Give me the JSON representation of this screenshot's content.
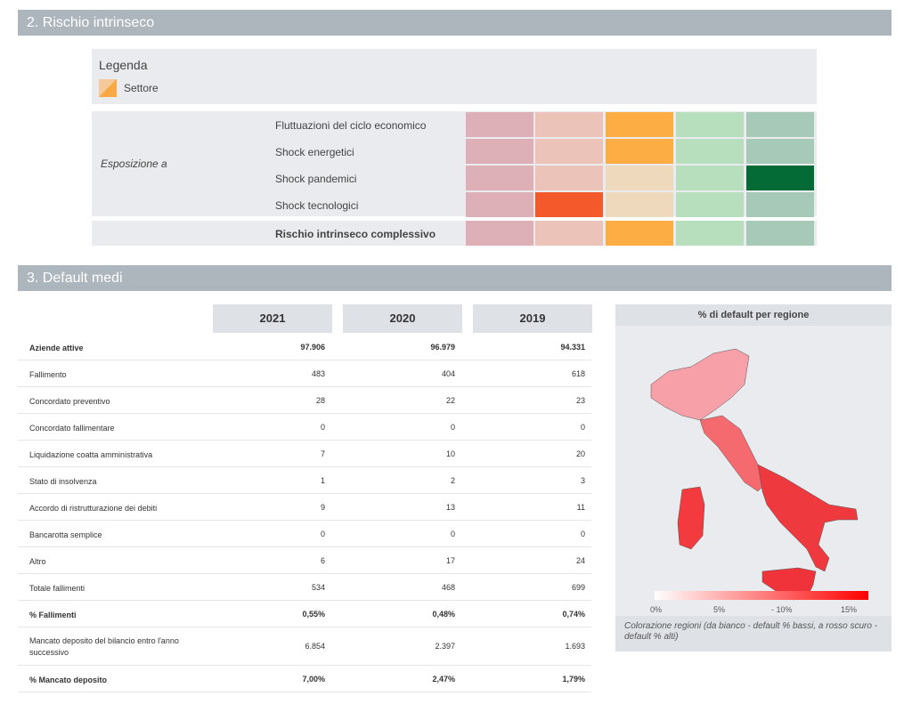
{
  "section2": {
    "title": "2. Rischio intrinseco"
  },
  "legend": {
    "title": "Legenda",
    "item": "Settore"
  },
  "risk": {
    "group_label": "Esposizione a",
    "rows": [
      {
        "label": "Fluttuazioni del ciclo economico",
        "colors": [
          "#ddb0b8",
          "#ecc3b8",
          "#fcae45",
          "#b7dfbd",
          "#a6c9b8"
        ]
      },
      {
        "label": "Shock energetici",
        "colors": [
          "#ddb0b8",
          "#ecc3b8",
          "#fcae45",
          "#b7dfbd",
          "#a6c9b8"
        ]
      },
      {
        "label": "Shock pandemici",
        "colors": [
          "#ddb0b8",
          "#ecc3b8",
          "#eed9bc",
          "#b7dfbd",
          "#056b36"
        ]
      },
      {
        "label": "Shock tecnologici",
        "colors": [
          "#ddb0b8",
          "#f3592b",
          "#eed9bc",
          "#b7dfbd",
          "#a6c9b8"
        ]
      }
    ],
    "total": {
      "label": "Rischio intrinseco complessivo",
      "colors": [
        "#ddb0b8",
        "#ecc3b8",
        "#fcae45",
        "#b7dfbd",
        "#a6c9b8"
      ]
    }
  },
  "section3": {
    "title": "3. Default medi"
  },
  "table": {
    "years": [
      "2021",
      "2020",
      "2019"
    ],
    "rows": [
      {
        "label": "Aziende attive",
        "values": [
          "97.906",
          "96.979",
          "94.331"
        ],
        "bold": true
      },
      {
        "label": "Fallimento",
        "values": [
          "483",
          "404",
          "618"
        ]
      },
      {
        "label": "Concordato preventivo",
        "values": [
          "28",
          "22",
          "23"
        ]
      },
      {
        "label": "Concordato fallimentare",
        "values": [
          "0",
          "0",
          "0"
        ]
      },
      {
        "label": "Liquidazione coatta amministrativa",
        "values": [
          "7",
          "10",
          "20"
        ]
      },
      {
        "label": "Stato di insolvenza",
        "values": [
          "1",
          "2",
          "3"
        ]
      },
      {
        "label": "Accordo di ristrutturazione dei debiti",
        "values": [
          "9",
          "13",
          "11"
        ]
      },
      {
        "label": "Bancarotta semplice",
        "values": [
          "0",
          "0",
          "0"
        ]
      },
      {
        "label": "Altro",
        "values": [
          "6",
          "17",
          "24"
        ]
      },
      {
        "label": "Totale fallimenti",
        "values": [
          "534",
          "468",
          "699"
        ]
      },
      {
        "label": "% Fallimenti",
        "values": [
          "0,55%",
          "0,48%",
          "0,74%"
        ],
        "bold": true
      },
      {
        "label": "Mancato deposito del bilancio entro l'anno successivo",
        "values": [
          "6.854",
          "2.397",
          "1.693"
        ]
      },
      {
        "label": "% Mancato deposito",
        "values": [
          "7,00%",
          "2,47%",
          "1,79%"
        ],
        "bold": true
      }
    ]
  },
  "map": {
    "title": "% di default per regione",
    "scale": [
      "0%",
      "5%",
      "- 10%",
      "15%"
    ],
    "caption": "Colorazione regioni (da bianco - default % bassi, a rosso scuro - default % alti)"
  }
}
